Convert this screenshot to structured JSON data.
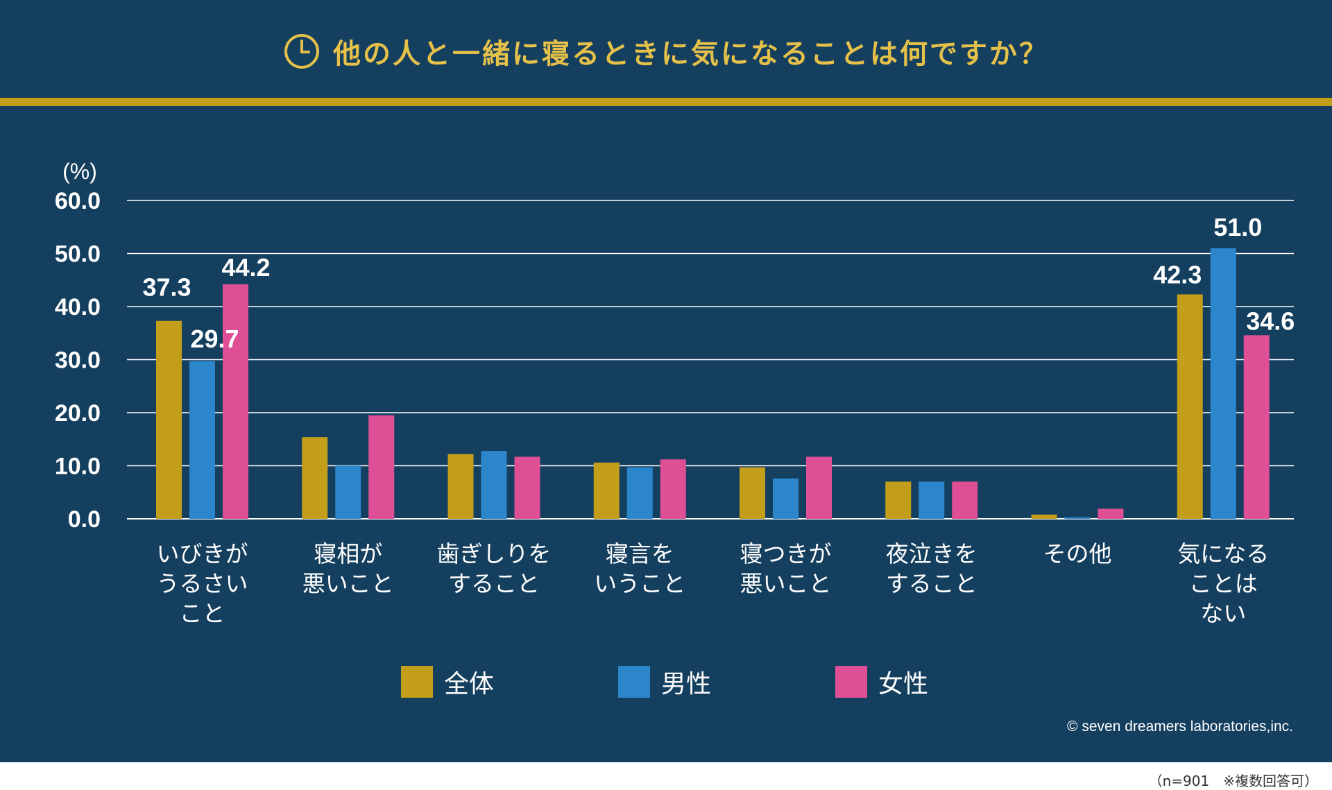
{
  "title": "他の人と一緒に寝るときに気になることは何ですか？",
  "copyright": "© seven dreamers laboratories,inc.",
  "footnote": "（n=901　※複数回答可）",
  "colors": {
    "background": "#153f5e",
    "title": "#e5c14a",
    "rule": "#c39e1b",
    "series": [
      "#c39e1b",
      "#2b86cc",
      "#df4f96"
    ]
  },
  "chart_data": {
    "type": "bar",
    "unit": "(%)",
    "ylim": [
      0,
      60
    ],
    "yticks": [
      "0.0",
      "10.0",
      "20.0",
      "30.0",
      "40.0",
      "50.0",
      "60.0"
    ],
    "grid": true,
    "legend_position": "bottom",
    "categories": [
      [
        "いびきが",
        "うるさい",
        "こと"
      ],
      [
        "寝相が",
        "悪いこと"
      ],
      [
        "歯ぎしりを",
        "すること"
      ],
      [
        "寝言を",
        "いうこと"
      ],
      [
        "寝つきが",
        "悪いこと"
      ],
      [
        "夜泣きを",
        "すること"
      ],
      [
        "その他"
      ],
      [
        "気になる",
        "ことは",
        "ない"
      ]
    ],
    "series": [
      {
        "name": "全体",
        "values": [
          37.3,
          15.4,
          12.2,
          10.6,
          9.7,
          7.0,
          0.8,
          42.3
        ]
      },
      {
        "name": "男性",
        "values": [
          29.7,
          10.0,
          12.8,
          9.7,
          7.6,
          7.0,
          0.3,
          51.0
        ]
      },
      {
        "name": "女性",
        "values": [
          44.2,
          19.5,
          11.7,
          11.2,
          11.7,
          7.0,
          1.9,
          34.6
        ]
      }
    ],
    "data_labels": [
      {
        "category": 0,
        "series": 0,
        "text": "37.3"
      },
      {
        "category": 0,
        "series": 1,
        "text": "29.7"
      },
      {
        "category": 0,
        "series": 2,
        "text": "44.2"
      },
      {
        "category": 7,
        "series": 0,
        "text": "42.3"
      },
      {
        "category": 7,
        "series": 1,
        "text": "51.0"
      },
      {
        "category": 7,
        "series": 2,
        "text": "34.6"
      }
    ]
  }
}
